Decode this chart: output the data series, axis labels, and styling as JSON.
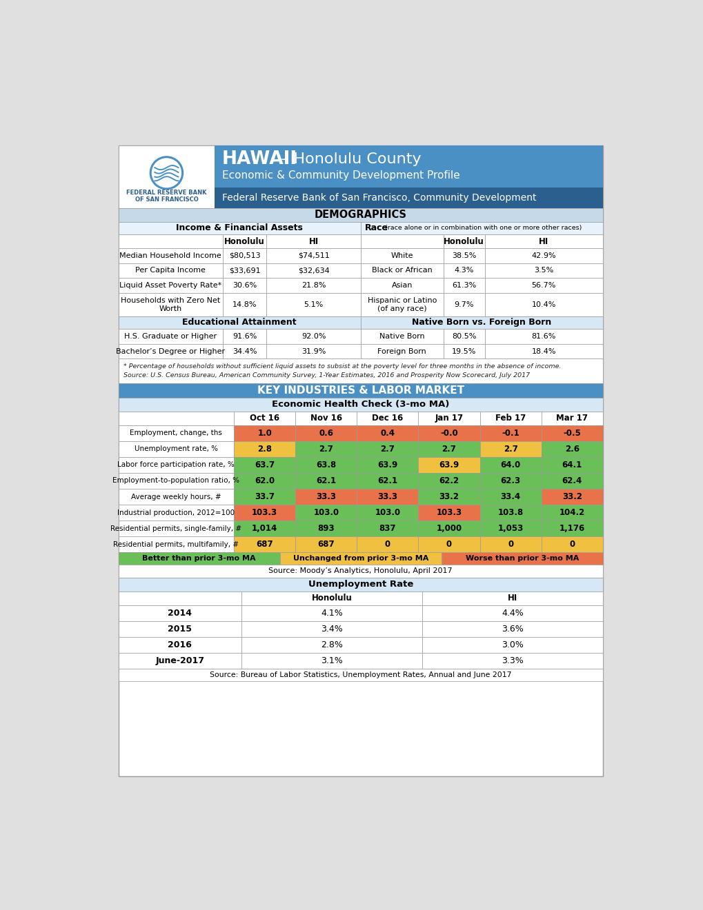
{
  "title_hawaii_bold": "HAWAII",
  "title_hawaii_rest": " – Honolulu County",
  "title_sub": "Economic & Community Development Profile",
  "title_fed": "Federal Reserve Bank of San Francisco, Community Development",
  "section_demographics": "DEMOGRAPHICS",
  "section_key_industries": "KEY INDUSTRIES & LABOR MARKET",
  "demo_header_income": "Income & Financial Assets",
  "demo_header_race_bold": "Race",
  "demo_header_race_small": " (race alone or in combination with one or more other races)",
  "income_rows": [
    [
      "Median Household Income",
      "$80,513",
      "$74,511"
    ],
    [
      "Per Capita Income",
      "$33,691",
      "$32,634"
    ],
    [
      "Liquid Asset Poverty Rate*",
      "30.6%",
      "21.8%"
    ],
    [
      "Households with Zero Net\nWorth",
      "14.8%",
      "5.1%"
    ]
  ],
  "race_rows": [
    [
      "White",
      "38.5%",
      "42.9%"
    ],
    [
      "Black or African",
      "4.3%",
      "3.5%"
    ],
    [
      "Asian",
      "61.3%",
      "56.7%"
    ],
    [
      "Hispanic or Latino\n(of any race)",
      "9.7%",
      "10.4%"
    ]
  ],
  "edu_header": "Educational Attainment",
  "native_header": "Native Born vs. Foreign Born",
  "edu_rows": [
    [
      "H.S. Graduate or Higher",
      "91.6%",
      "92.0%"
    ],
    [
      "Bachelor’s Degree or Higher",
      "34.4%",
      "31.9%"
    ]
  ],
  "native_rows": [
    [
      "Native Born",
      "80.5%",
      "81.6%"
    ],
    [
      "Foreign Born",
      "19.5%",
      "18.4%"
    ]
  ],
  "footnote_line1": "* Percentage of households without sufficient liquid assets to subsist at the poverty level for three months in the absence of income.",
  "footnote_line2": "Source: U.S. Census Bureau, American Community Survey, 1-Year Estimates, 2016 and Prosperity Now Scorecard, July 2017",
  "ehc_header": "Economic Health Check (3-mo MA)",
  "ehc_col_headers": [
    "Oct 16",
    "Nov 16",
    "Dec 16",
    "Jan 17",
    "Feb 17",
    "Mar 17"
  ],
  "ehc_rows": [
    [
      "Employment, change, ths",
      "1.0",
      "0.6",
      "0.4",
      "-0.0",
      "-0.1",
      "-0.5"
    ],
    [
      "Unemployment rate, %",
      "2.8",
      "2.7",
      "2.7",
      "2.7",
      "2.7",
      "2.6"
    ],
    [
      "Labor force participation rate, %",
      "63.7",
      "63.8",
      "63.9",
      "63.9",
      "64.0",
      "64.1"
    ],
    [
      "Employment-to-population ratio, %",
      "62.0",
      "62.1",
      "62.1",
      "62.2",
      "62.3",
      "62.4"
    ],
    [
      "Average weekly hours, #",
      "33.7",
      "33.3",
      "33.3",
      "33.2",
      "33.4",
      "33.2"
    ],
    [
      "Industrial production, 2012=100",
      "103.3",
      "103.0",
      "103.0",
      "103.3",
      "103.8",
      "104.2"
    ],
    [
      "Residential permits, single-family, #",
      "1,014",
      "893",
      "837",
      "1,000",
      "1,053",
      "1,176"
    ],
    [
      "Residential permits, multifamily, #",
      "687",
      "687",
      "0",
      "0",
      "0",
      "0"
    ]
  ],
  "ehc_colors": [
    [
      "#E8734A",
      "#E8734A",
      "#E8734A",
      "#E8734A",
      "#E8734A",
      "#E8734A"
    ],
    [
      "#F0C040",
      "#6BBF59",
      "#6BBF59",
      "#6BBF59",
      "#F0C040",
      "#6BBF59"
    ],
    [
      "#6BBF59",
      "#6BBF59",
      "#6BBF59",
      "#F0C040",
      "#6BBF59",
      "#6BBF59"
    ],
    [
      "#6BBF59",
      "#6BBF59",
      "#6BBF59",
      "#6BBF59",
      "#6BBF59",
      "#6BBF59"
    ],
    [
      "#6BBF59",
      "#E8734A",
      "#E8734A",
      "#6BBF59",
      "#6BBF59",
      "#E8734A"
    ],
    [
      "#E8734A",
      "#6BBF59",
      "#6BBF59",
      "#E8734A",
      "#6BBF59",
      "#6BBF59"
    ],
    [
      "#6BBF59",
      "#6BBF59",
      "#6BBF59",
      "#6BBF59",
      "#6BBF59",
      "#6BBF59"
    ],
    [
      "#F0C040",
      "#F0C040",
      "#F0C040",
      "#F0C040",
      "#F0C040",
      "#F0C040"
    ]
  ],
  "legend_better": "Better than prior 3-mo MA",
  "legend_unchanged": "Unchanged from prior 3-mo MA",
  "legend_worse": "Worse than prior 3-mo MA",
  "ehc_source": "Source: Moody’s Analytics, Honolulu, April 2017",
  "unemp_header": "Unemployment Rate",
  "unemp_rows": [
    [
      "2014",
      "4.1%",
      "4.4%"
    ],
    [
      "2015",
      "3.4%",
      "3.6%"
    ],
    [
      "2016",
      "2.8%",
      "3.0%"
    ],
    [
      "June-2017",
      "3.1%",
      "3.3%"
    ]
  ],
  "unemp_source": "Source: Bureau of Labor Statistics, Unemployment Rates, Annual and June 2017",
  "color_blue": "#4A90C4",
  "color_dark_blue": "#2B5F8E",
  "color_light_blue_hdr": "#C5D9E8",
  "color_subhdr": "#D6E8F5",
  "color_white": "#FFFFFF",
  "color_border": "#999999",
  "color_green": "#6BBF59",
  "color_yellow": "#F0C040",
  "color_orange": "#E8734A"
}
